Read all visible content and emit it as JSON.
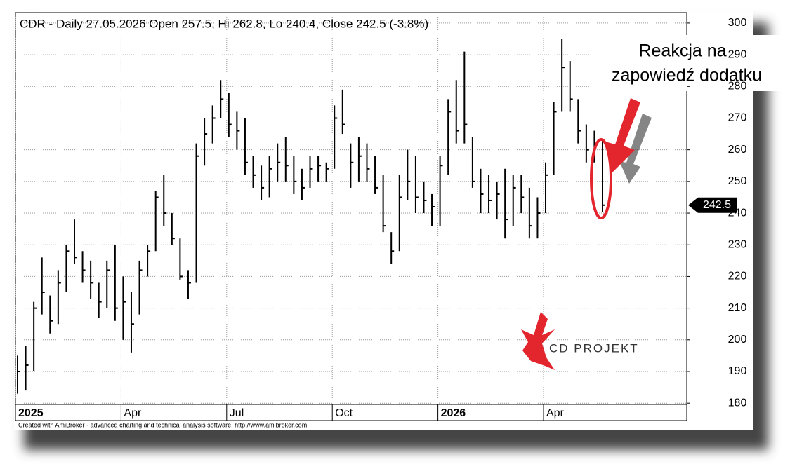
{
  "chart_data": {
    "type": "hlc",
    "title": "CDR - Daily 27.05.2026 Open 257.5, Hi 262.8, Lo 240.4, Close 242.5 (-3.8%)",
    "footer": "Created with AmiBroker - advanced charting and technical analysis software. http://www.amibroker.com",
    "annotation": [
      "Reakcja na",
      "zapowiedź dodatku"
    ],
    "logo_text": "CD PROJEKT",
    "color": "#000000",
    "grid": true,
    "categories": [
      "2025",
      null,
      null,
      null,
      null,
      null,
      null,
      null,
      null,
      null,
      null,
      null,
      null,
      "Apr",
      null,
      null,
      null,
      null,
      null,
      null,
      null,
      null,
      null,
      null,
      null,
      null,
      "Jul",
      null,
      null,
      null,
      null,
      null,
      null,
      null,
      null,
      null,
      null,
      null,
      null,
      "Oct",
      null,
      null,
      null,
      null,
      null,
      null,
      null,
      null,
      null,
      null,
      null,
      null,
      "2026",
      null,
      null,
      null,
      null,
      null,
      null,
      null,
      null,
      null,
      null,
      null,
      null,
      "Apr",
      null,
      null,
      null,
      null,
      null,
      null,
      null
    ],
    "high": [
      195,
      198,
      212,
      226,
      214,
      222,
      230,
      238,
      228,
      225,
      218,
      225,
      230,
      220,
      215,
      225,
      230,
      247,
      252,
      240,
      232,
      222,
      262,
      270,
      274,
      282,
      278,
      272,
      270,
      258,
      255,
      258,
      262,
      264,
      258,
      254,
      258,
      258,
      256,
      274,
      279,
      262,
      264,
      262,
      258,
      252,
      234,
      252,
      260,
      258,
      250,
      246,
      258,
      276,
      282,
      291,
      264,
      254,
      252,
      250,
      254,
      252,
      252,
      248,
      245,
      256,
      275,
      295,
      288,
      276,
      268,
      266,
      262.8
    ],
    "low": [
      183,
      184,
      190,
      208,
      202,
      205,
      215,
      224,
      218,
      213,
      207,
      210,
      206,
      200,
      196,
      208,
      220,
      228,
      236,
      230,
      219,
      213,
      218,
      255,
      262,
      270,
      264,
      260,
      252,
      248,
      244,
      245,
      250,
      250,
      246,
      244,
      248,
      250,
      250,
      254,
      265,
      248,
      250,
      250,
      246,
      234,
      224,
      228,
      244,
      240,
      240,
      236,
      236,
      252,
      262,
      262,
      248,
      240,
      240,
      238,
      232,
      236,
      240,
      232,
      232,
      240,
      252,
      272,
      272,
      262,
      256,
      256,
      240.4
    ],
    "close": [
      190,
      192,
      210,
      215,
      206,
      218,
      228,
      226,
      222,
      218,
      212,
      222,
      210,
      212,
      205,
      222,
      228,
      245,
      240,
      232,
      220,
      218,
      258,
      265,
      270,
      276,
      268,
      266,
      256,
      252,
      248,
      254,
      256,
      255,
      250,
      248,
      254,
      255,
      254,
      270,
      268,
      256,
      258,
      254,
      248,
      236,
      228,
      245,
      250,
      245,
      244,
      242,
      255,
      272,
      266,
      268,
      250,
      246,
      244,
      246,
      238,
      248,
      245,
      236,
      240,
      252,
      272,
      286,
      276,
      266,
      260,
      262,
      242.5
    ],
    "ylim": [
      179.6,
      303.3
    ],
    "yticks": [
      180,
      190,
      200,
      210,
      220,
      230,
      240,
      250,
      260,
      270,
      280,
      290,
      300
    ]
  }
}
